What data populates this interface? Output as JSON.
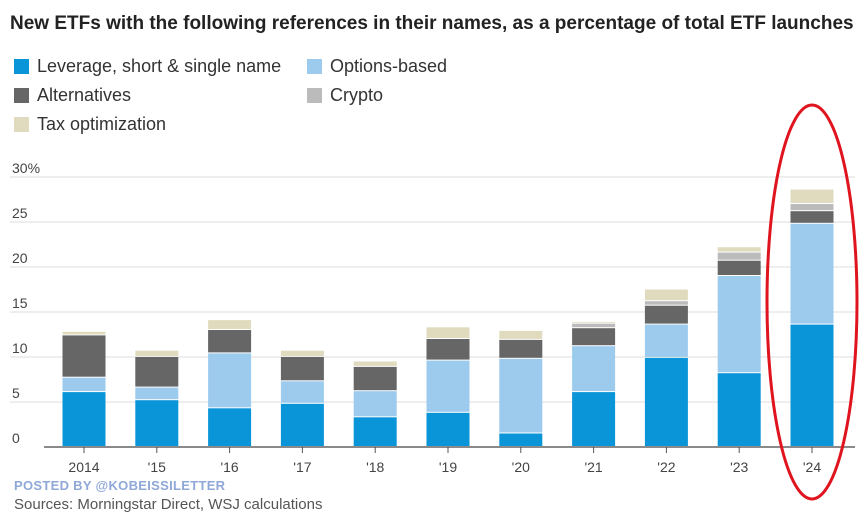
{
  "title": "New ETFs with the following references in their names, as a percentage of total ETF launches",
  "legend": [
    {
      "label": "Leverage, short & single name",
      "color": "#0a95d8"
    },
    {
      "label": "Options-based",
      "color": "#9ccbee"
    },
    {
      "label": "Alternatives",
      "color": "#666666"
    },
    {
      "label": "Crypto",
      "color": "#bbbbbb"
    },
    {
      "label": "Tax optimization",
      "color": "#e0dbbf"
    }
  ],
  "posted_by": "POSTED BY @KOBEISSILETTER",
  "source": "Sources: Morningstar Direct, WSJ calculations",
  "highlight": {
    "category": "'24",
    "color": "#e0141e"
  },
  "chart_data": {
    "type": "bar",
    "stacked": true,
    "categories": [
      "2014",
      "'15",
      "'16",
      "'17",
      "'18",
      "'19",
      "'20",
      "'21",
      "'22",
      "'23",
      "'24"
    ],
    "series": [
      {
        "name": "Leverage, short & single name",
        "color": "#0a95d8",
        "values": [
          6.1,
          5.2,
          4.3,
          4.8,
          3.3,
          3.8,
          1.5,
          6.1,
          9.9,
          8.2,
          13.6
        ]
      },
      {
        "name": "Options-based",
        "color": "#9ccbee",
        "values": [
          1.6,
          1.4,
          6.1,
          2.5,
          2.9,
          5.8,
          8.3,
          5.1,
          3.7,
          10.8,
          11.2
        ]
      },
      {
        "name": "Alternatives",
        "color": "#666666",
        "values": [
          4.7,
          3.4,
          2.6,
          2.7,
          2.7,
          2.4,
          2.1,
          2.0,
          2.1,
          1.7,
          1.4
        ]
      },
      {
        "name": "Crypto",
        "color": "#bbbbbb",
        "values": [
          0,
          0,
          0,
          0,
          0,
          0,
          0,
          0.5,
          0.5,
          0.9,
          0.8
        ]
      },
      {
        "name": "Tax optimization",
        "color": "#e0dbbf",
        "values": [
          0.4,
          0.7,
          1.1,
          0.7,
          0.6,
          1.3,
          1.0,
          0.2,
          1.3,
          0.6,
          1.6
        ]
      }
    ],
    "ylim": [
      0,
      30
    ],
    "yticks": [
      {
        "value": 0,
        "label": "0"
      },
      {
        "value": 5,
        "label": "5"
      },
      {
        "value": 10,
        "label": "10"
      },
      {
        "value": 15,
        "label": "15"
      },
      {
        "value": 20,
        "label": "20"
      },
      {
        "value": 25,
        "label": "25"
      },
      {
        "value": 30,
        "label": "30%"
      }
    ],
    "grid": true,
    "xlabel": "",
    "ylabel": ""
  }
}
